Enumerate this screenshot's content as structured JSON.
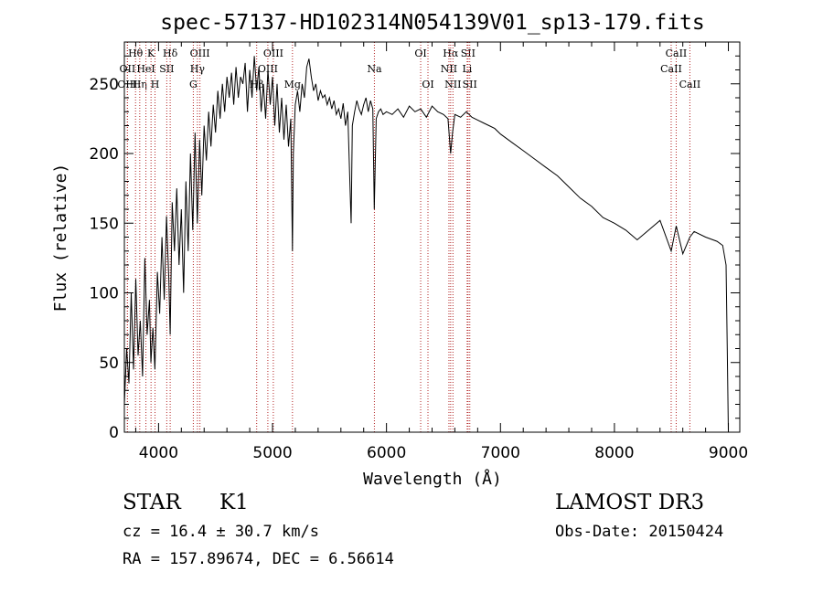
{
  "chart_data": {
    "type": "line",
    "title": "spec-57137-HD102314N054139V01_sp13-179.fits",
    "xlabel": "Wavelength (Å)",
    "ylabel": "Flux (relative)",
    "xlim": [
      3700,
      9100
    ],
    "ylim": [
      0,
      280
    ],
    "xticks": [
      4000,
      5000,
      6000,
      7000,
      8000,
      9000
    ],
    "yticks": [
      0,
      50,
      100,
      150,
      200,
      250
    ],
    "grid": false,
    "series": [
      {
        "name": "flux",
        "x": [
          3700,
          3720,
          3740,
          3760,
          3780,
          3800,
          3820,
          3840,
          3860,
          3880,
          3900,
          3920,
          3933,
          3950,
          3968,
          3990,
          4010,
          4030,
          4050,
          4070,
          4090,
          4102,
          4120,
          4140,
          4160,
          4180,
          4200,
          4220,
          4240,
          4260,
          4280,
          4300,
          4320,
          4340,
          4360,
          4380,
          4400,
          4420,
          4440,
          4460,
          4480,
          4500,
          4520,
          4540,
          4560,
          4580,
          4600,
          4620,
          4640,
          4660,
          4680,
          4700,
          4720,
          4740,
          4760,
          4780,
          4800,
          4820,
          4840,
          4861,
          4880,
          4900,
          4920,
          4940,
          4960,
          4980,
          5000,
          5020,
          5040,
          5060,
          5080,
          5100,
          5120,
          5140,
          5160,
          5175,
          5183,
          5200,
          5220,
          5240,
          5260,
          5280,
          5300,
          5320,
          5340,
          5360,
          5380,
          5400,
          5420,
          5440,
          5460,
          5480,
          5500,
          5520,
          5540,
          5560,
          5580,
          5600,
          5620,
          5640,
          5660,
          5680,
          5690,
          5700,
          5720,
          5740,
          5760,
          5780,
          5800,
          5820,
          5840,
          5860,
          5880,
          5893,
          5910,
          5930,
          5950,
          5970,
          6000,
          6050,
          6100,
          6150,
          6200,
          6250,
          6300,
          6350,
          6400,
          6450,
          6500,
          6540,
          6563,
          6580,
          6600,
          6650,
          6700,
          6750,
          6800,
          6850,
          6900,
          6950,
          7000,
          7100,
          7200,
          7300,
          7400,
          7500,
          7600,
          7700,
          7800,
          7900,
          8000,
          8100,
          8200,
          8300,
          8400,
          8498,
          8542,
          8600,
          8662,
          8700,
          8800,
          8900,
          8950,
          8980,
          8990,
          9000
        ],
        "y": [
          20,
          60,
          35,
          100,
          45,
          110,
          55,
          80,
          40,
          125,
          70,
          95,
          50,
          75,
          45,
          115,
          85,
          140,
          95,
          155,
          110,
          70,
          165,
          130,
          175,
          120,
          160,
          100,
          180,
          130,
          200,
          145,
          215,
          150,
          210,
          170,
          220,
          195,
          230,
          205,
          235,
          215,
          245,
          225,
          250,
          230,
          255,
          240,
          258,
          235,
          262,
          240,
          255,
          250,
          265,
          230,
          260,
          240,
          270,
          245,
          262,
          230,
          250,
          225,
          260,
          235,
          255,
          220,
          250,
          215,
          240,
          210,
          235,
          205,
          225,
          130,
          200,
          235,
          245,
          230,
          250,
          240,
          262,
          268,
          255,
          245,
          250,
          238,
          245,
          240,
          242,
          235,
          240,
          232,
          238,
          228,
          232,
          225,
          236,
          220,
          230,
          175,
          150,
          220,
          230,
          238,
          232,
          228,
          235,
          240,
          230,
          238,
          232,
          160,
          225,
          230,
          232,
          228,
          230,
          228,
          232,
          226,
          234,
          230,
          232,
          226,
          234,
          230,
          228,
          225,
          200,
          215,
          228,
          226,
          230,
          226,
          224,
          222,
          220,
          218,
          214,
          208,
          202,
          196,
          190,
          184,
          176,
          168,
          162,
          154,
          150,
          145,
          138,
          145,
          152,
          130,
          148,
          128,
          140,
          144,
          140,
          137,
          134,
          120,
          60,
          0
        ]
      }
    ],
    "lines": [
      {
        "label": "Hθ",
        "x": 3798,
        "row": 1
      },
      {
        "label": "OII",
        "x": 3727,
        "row": 2
      },
      {
        "label": "OIII",
        "x": 3727,
        "row": 3
      },
      {
        "label": "Hη",
        "x": 3835,
        "row": 3
      },
      {
        "label": "HeI",
        "x": 3889,
        "row": 2
      },
      {
        "label": "K",
        "x": 3934,
        "row": 1
      },
      {
        "label": "SII",
        "x": 4072,
        "row": 2
      },
      {
        "label": "H",
        "x": 3969,
        "row": 3
      },
      {
        "label": "Hδ",
        "x": 4102,
        "row": 1
      },
      {
        "label": "OIII",
        "x": 4363,
        "row": 1
      },
      {
        "label": "Hγ",
        "x": 4341,
        "row": 2
      },
      {
        "label": "G",
        "x": 4305,
        "row": 3
      },
      {
        "label": "OIII",
        "x": 5007,
        "row": 1
      },
      {
        "label": "OIII",
        "x": 4959,
        "row": 2
      },
      {
        "label": "Hβ",
        "x": 4861,
        "row": 3
      },
      {
        "label": "Mg",
        "x": 5175,
        "row": 3
      },
      {
        "label": "Na",
        "x": 5894,
        "row": 2
      },
      {
        "label": "OI",
        "x": 6300,
        "row": 1
      },
      {
        "label": "OI",
        "x": 6364,
        "row": 3
      },
      {
        "label": "Hα",
        "x": 6563,
        "row": 1
      },
      {
        "label": "SII",
        "x": 6716,
        "row": 1
      },
      {
        "label": "NII",
        "x": 6548,
        "row": 2
      },
      {
        "label": "Li",
        "x": 6708,
        "row": 2
      },
      {
        "label": "NII",
        "x": 6583,
        "row": 3
      },
      {
        "label": "SII",
        "x": 6731,
        "row": 3
      },
      {
        "label": "CaII",
        "x": 8542,
        "row": 1
      },
      {
        "label": "CaII",
        "x": 8498,
        "row": 2
      },
      {
        "label": "CaII",
        "x": 8662,
        "row": 3
      }
    ]
  },
  "info": {
    "class_label": "STAR",
    "subclass": "K1",
    "survey": "LAMOST DR3",
    "cz_text": "cz = 16.4 ± 30.7 km/s",
    "obs_date": "Obs-Date: 20150424",
    "radec_text": "RA = 157.89674, DEC =    6.56614"
  },
  "colors": {
    "axes": "#000000",
    "line": "#000000",
    "marker_lines": "#b22222"
  }
}
